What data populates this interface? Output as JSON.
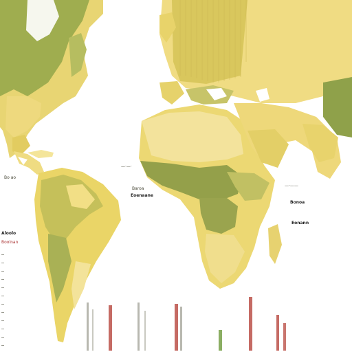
{
  "map": {
    "colors": {
      "background": "#ffffff",
      "land_light": "#f1df8a",
      "land_mid": "#e6cf63",
      "land_green": "#a6b15a",
      "land_dark": "#8f9c44",
      "ice": "#ffffff",
      "accent_red": "#b23a30",
      "accent_green": "#6e9a3c",
      "boundary": "#d9c46a"
    },
    "labels": {
      "left_margin": "Aloolo",
      "left_margin_sub": "Boolnan",
      "west_africa": "—·—·",
      "central_label_1": "Baroa",
      "central_label_2": "Eoenaane",
      "east_label_1": "—·——",
      "east_label_2": "Bonoa",
      "east_label_3": "Eonann",
      "caribbean_label": "Bo·ao"
    },
    "legend_icons": [
      "legend-bar-gray",
      "legend-bar-red",
      "legend-bar-green"
    ]
  }
}
